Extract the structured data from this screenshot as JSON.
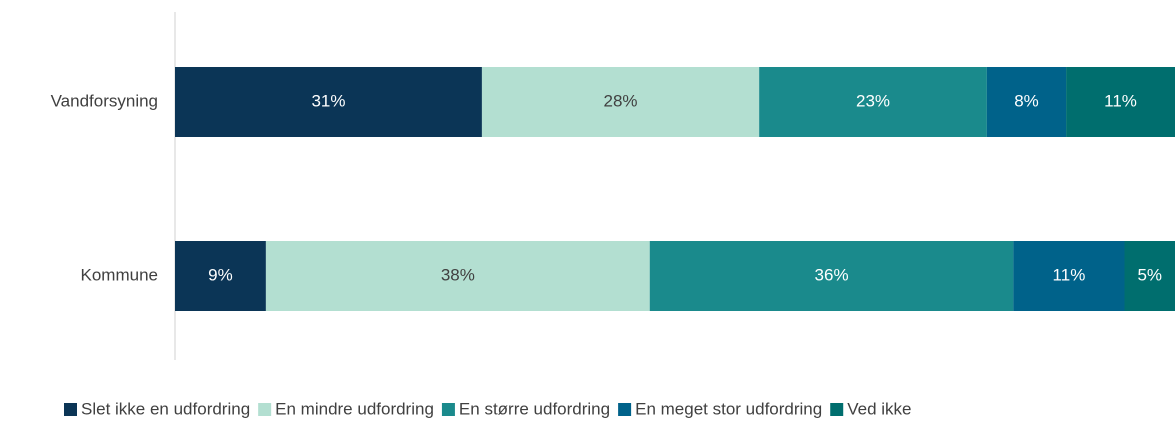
{
  "chart_data": {
    "type": "bar",
    "orientation": "horizontal",
    "stacked": true,
    "categories": [
      "Vandforsyning",
      "Kommune"
    ],
    "series": [
      {
        "name": "Slet ikke en udfordring",
        "color": "#0b3556",
        "values": [
          31,
          9
        ],
        "value_labels": [
          "31%",
          "9%"
        ]
      },
      {
        "name": "En mindre udfordring",
        "color": "#b3dfd1",
        "values": [
          28,
          38
        ],
        "value_labels": [
          "28%",
          "38%"
        ]
      },
      {
        "name": "En større udfordring",
        "color": "#1a8a8c",
        "values": [
          23,
          36
        ],
        "value_labels": [
          "23%",
          "36%"
        ]
      },
      {
        "name": "En meget stor udfordring",
        "color": "#00628a",
        "values": [
          8,
          11
        ],
        "value_labels": [
          "8%",
          "11%"
        ]
      },
      {
        "name": "Ved ikke",
        "color": "#006e6e",
        "values": [
          11,
          5
        ],
        "value_labels": [
          "11%",
          "5%"
        ]
      }
    ],
    "legend": "bottom"
  }
}
